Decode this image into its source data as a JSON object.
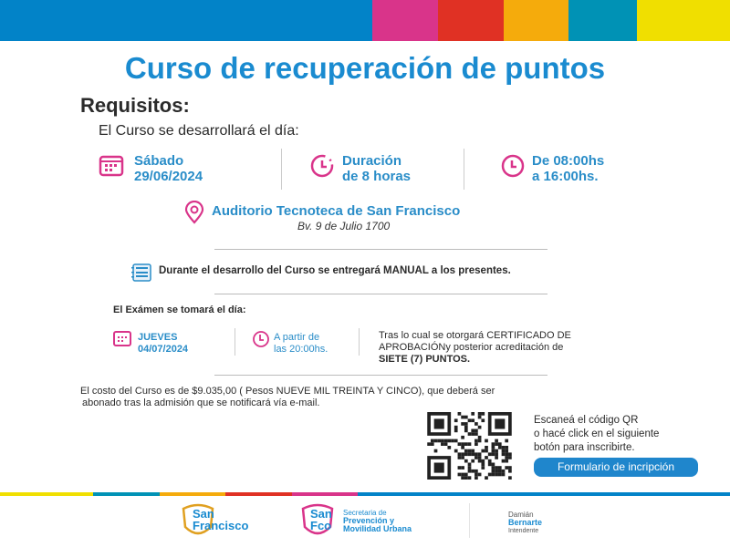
{
  "colors": {
    "brand_blue": "#1a8bd0",
    "pink": "#d9348a",
    "red": "#e03124",
    "orange": "#f5ab0c",
    "teal": "#0092b5",
    "yellow": "#f0df00"
  },
  "title": "Curso de recuperación de puntos",
  "requisitos": "Requisitos:",
  "intro": "El Curso se desarrollará el día:",
  "course": {
    "day": "Sábado",
    "date": "29/06/2024",
    "duration_label": "Duración",
    "duration": "de 8 horas",
    "time_line1": "De 08:00hs",
    "time_line2": "a 16:00hs.",
    "place": "Auditorio Tecnoteca  de San Francisco",
    "address": "Bv. 9 de Julio 1700"
  },
  "manual": {
    "icon_text": "MANUAL",
    "text": "Durante el desarrollo del Curso se entregará MANUAL a los presentes."
  },
  "exam": {
    "intro": "El Exámen se tomará el día:",
    "day": "JUEVES",
    "date": "04/07/2024",
    "time_line1": "A partir de",
    "time_line2": "las 20:00hs.",
    "result_line1": "Tras lo cual se otorgará  CERTIFICADO DE",
    "result_line2": "APROBACIÓNy posterior acreditación de",
    "result_line3": "SIETE (7) PUNTOS."
  },
  "cost": {
    "line1": "El costo del Curso es de   $9.035,00 ( Pesos NUEVE MIL TREINTA Y CINCO), que deberá ser",
    "line2": "abonado tras la admisión que se notificará vía e-mail."
  },
  "qr": {
    "line1": "Escaneá el código QR",
    "line2": "o hacé click en el siguiente",
    "line3": "botón para inscribirte.",
    "button": "Formulario de incripción"
  },
  "footer": {
    "logo1_line1": "San",
    "logo1_line2": "Francisco",
    "logo2_line1": "San",
    "logo2_line2": "Fco",
    "secretaria_line1": "Secretaria de",
    "secretaria_line2": "Prevención y",
    "secretaria_line3": "Movilidad Urbana",
    "name_first": "Damián",
    "name_last": "Bernarte",
    "role": "Intendente"
  }
}
